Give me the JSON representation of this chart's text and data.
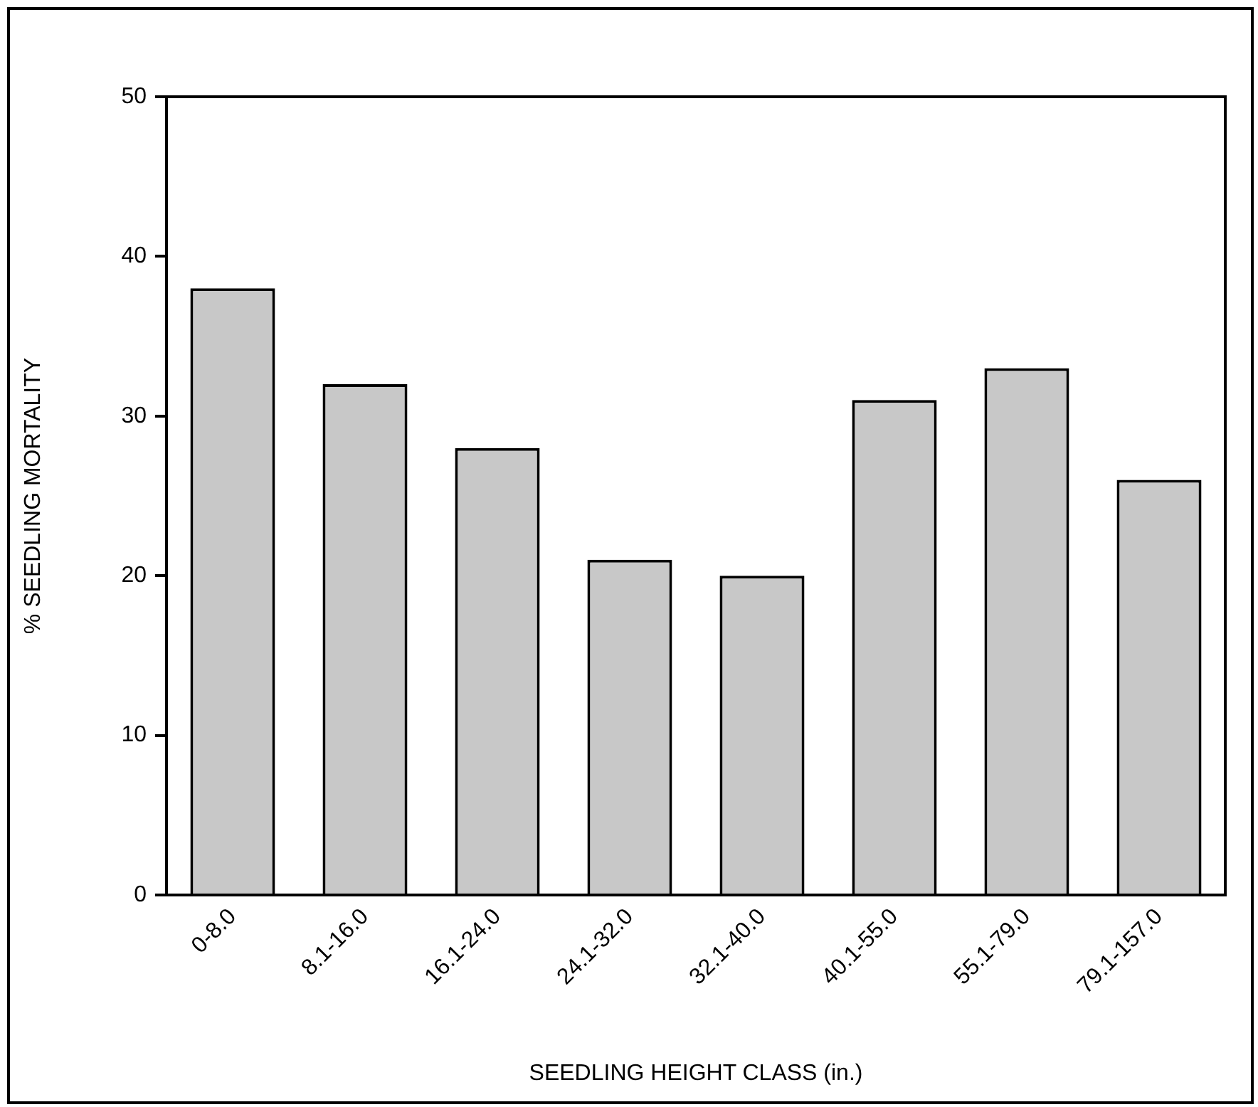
{
  "chart_data": {
    "type": "bar",
    "xlabel": "SEEDLING HEIGHT CLASS (in.)",
    "ylabel": "% SEEDLING MORTALITY",
    "categories": [
      "0-8.0",
      "8.1-16.0",
      "16.1-24.0",
      "24.1-32.0",
      "32.1-40.0",
      "40.1-55.0",
      "55.1-79.0",
      "79.1-157.0"
    ],
    "values": [
      38,
      32,
      28,
      21,
      20,
      31,
      33,
      26
    ],
    "color": "#c8c8c8",
    "ylim": [
      0,
      50
    ],
    "yticks": [
      0,
      10,
      20,
      30,
      40,
      50
    ],
    "grid": false,
    "legend": false
  }
}
